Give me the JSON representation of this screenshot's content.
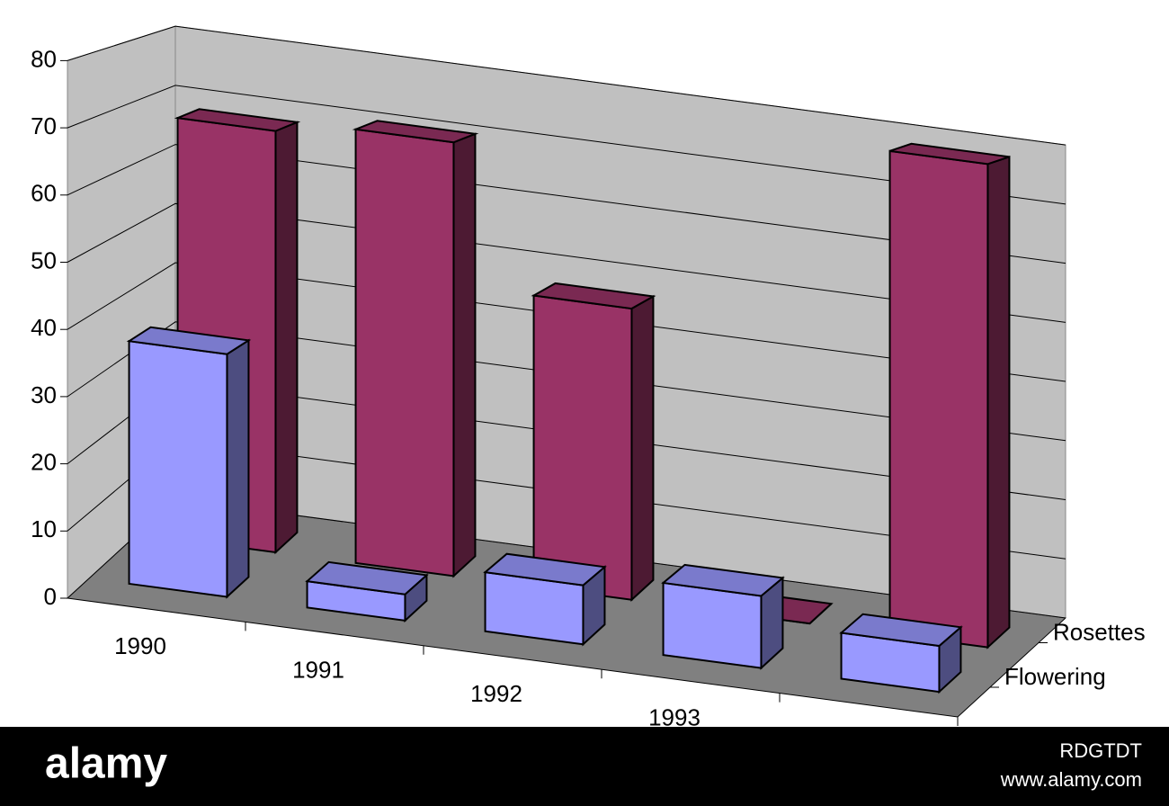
{
  "chart_data": {
    "type": "bar3d",
    "categories": [
      "1990",
      "1991",
      "1992",
      "1993",
      null
    ],
    "series": [
      {
        "name": "Flowering",
        "color": "#9999ff",
        "values": [
          37,
          4,
          9,
          11,
          7
        ]
      },
      {
        "name": "Rosettes",
        "color": "#993366",
        "values": [
          68,
          70,
          47,
          0,
          78
        ]
      }
    ],
    "ylim": [
      0,
      80
    ],
    "yticks": [
      0,
      10,
      20,
      30,
      40,
      50,
      60,
      70,
      80
    ],
    "grid": true
  },
  "watermark": {
    "brand": "alamy",
    "id": "RDGTDT",
    "url": "www.alamy.com"
  }
}
